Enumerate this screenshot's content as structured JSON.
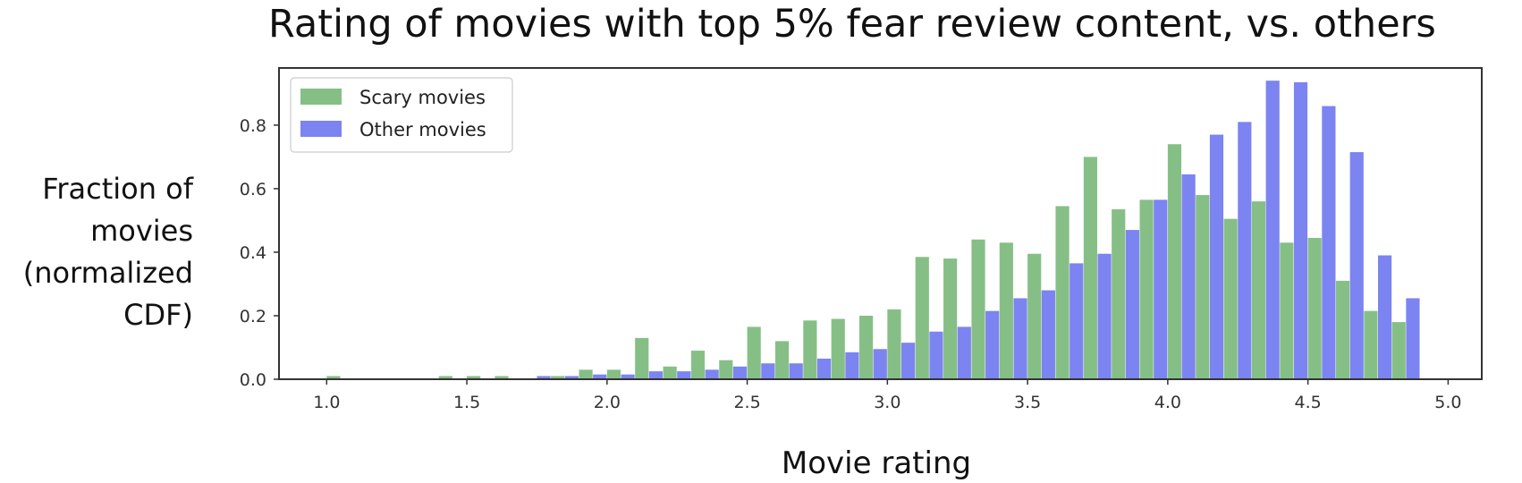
{
  "chart_data": {
    "type": "bar",
    "title": "Rating of movies with top 5% fear review content, vs. others",
    "xlabel": "Movie rating",
    "ylabel_lines": [
      "Fraction of",
      "movies",
      "(normalized",
      "CDF)"
    ],
    "xlim": [
      0.83,
      5.12
    ],
    "ylim": [
      0,
      0.98
    ],
    "xticks": [
      "1.0",
      "1.5",
      "2.0",
      "2.5",
      "3.0",
      "3.5",
      "4.0",
      "4.5",
      "5.0"
    ],
    "yticks": [
      "0.0",
      "0.2",
      "0.4",
      "0.6",
      "0.8"
    ],
    "legend_position": "top-left",
    "bin_start": 1.0,
    "bin_width": 0.1,
    "colors": {
      "scary": "#86bf86",
      "other": "#7b84f0",
      "axes": "#333333"
    },
    "series": [
      {
        "name": "Scary movies",
        "values": [
          0.01,
          0,
          0,
          0,
          0.01,
          0.01,
          0.01,
          0,
          0.01,
          0.03,
          0.03,
          0.13,
          0.04,
          0.09,
          0.06,
          0.165,
          0.12,
          0.185,
          0.19,
          0.2,
          0.22,
          0.385,
          0.38,
          0.44,
          0.43,
          0.395,
          0.545,
          0.7,
          0.535,
          0.565,
          0.74,
          0.58,
          0.505,
          0.56,
          0.43,
          0.445,
          0.31,
          0.215,
          0.18,
          0
        ]
      },
      {
        "name": "Other movies",
        "values": [
          0,
          0,
          0,
          0,
          0,
          0,
          0,
          0.01,
          0.01,
          0.015,
          0.015,
          0.025,
          0.025,
          0.03,
          0.04,
          0.05,
          0.05,
          0.065,
          0.085,
          0.095,
          0.115,
          0.15,
          0.165,
          0.215,
          0.255,
          0.28,
          0.365,
          0.395,
          0.47,
          0.565,
          0.645,
          0.77,
          0.81,
          0.94,
          0.935,
          0.86,
          0.715,
          0.39,
          0.255,
          0
        ]
      }
    ]
  }
}
